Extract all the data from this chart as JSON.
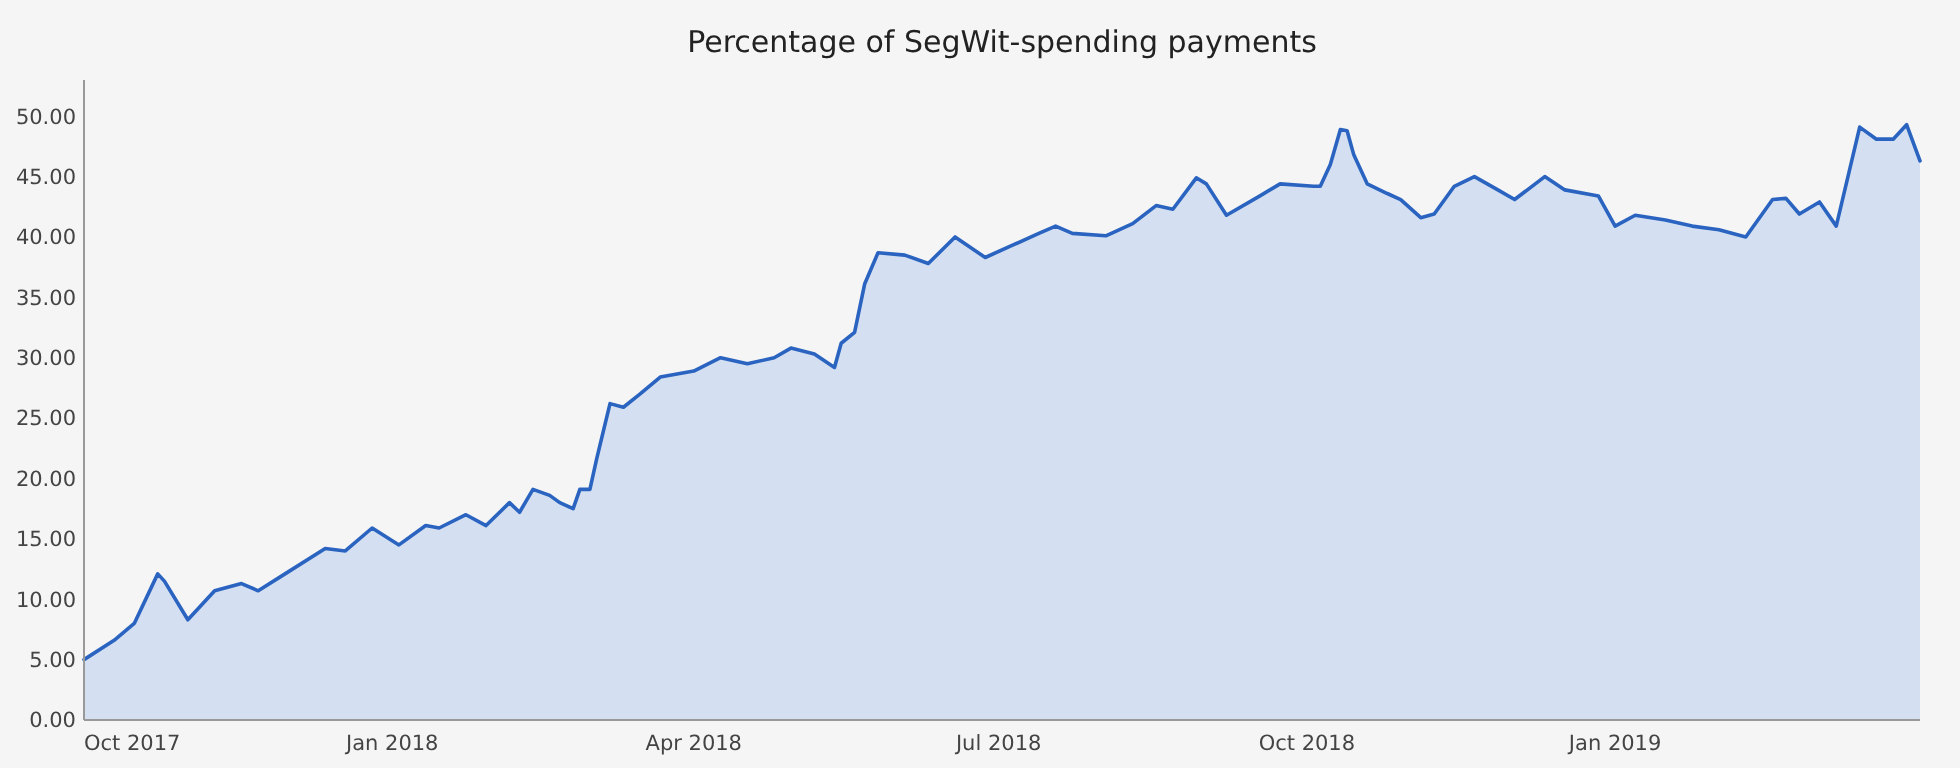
{
  "chart_data": {
    "type": "area",
    "title": "Percentage of SegWit-spending payments",
    "x": [
      "2017-10-01",
      "2017-10-10",
      "2017-10-16",
      "2017-10-23",
      "2017-10-25",
      "2017-11-01",
      "2017-11-09",
      "2017-11-17",
      "2017-11-22",
      "2017-11-30",
      "2017-12-12",
      "2017-12-18",
      "2017-12-26",
      "2018-01-03",
      "2018-01-11",
      "2018-01-15",
      "2018-01-23",
      "2018-01-29",
      "2018-02-05",
      "2018-02-08",
      "2018-02-12",
      "2018-02-17",
      "2018-02-20",
      "2018-02-24",
      "2018-02-26",
      "2018-03-01",
      "2018-03-03",
      "2018-03-07",
      "2018-03-11",
      "2018-03-16",
      "2018-03-22",
      "2018-04-01",
      "2018-04-09",
      "2018-04-17",
      "2018-04-25",
      "2018-04-30",
      "2018-05-07",
      "2018-05-13",
      "2018-05-15",
      "2018-05-19",
      "2018-05-22",
      "2018-05-26",
      "2018-06-03",
      "2018-06-10",
      "2018-06-18",
      "2018-06-27",
      "2018-07-05",
      "2018-07-13",
      "2018-07-18",
      "2018-07-23",
      "2018-08-02",
      "2018-08-10",
      "2018-08-17",
      "2018-08-22",
      "2018-08-29",
      "2018-09-01",
      "2018-09-07",
      "2018-09-17",
      "2018-09-23",
      "2018-10-03",
      "2018-10-05",
      "2018-10-08",
      "2018-10-11",
      "2018-10-13",
      "2018-10-15",
      "2018-10-19",
      "2018-10-25",
      "2018-10-29",
      "2018-11-04",
      "2018-11-08",
      "2018-11-14",
      "2018-11-20",
      "2018-11-27",
      "2018-12-02",
      "2018-12-11",
      "2018-12-17",
      "2018-12-27",
      "2019-01-01",
      "2019-01-07",
      "2019-01-16",
      "2019-01-24",
      "2019-02-01",
      "2019-02-09",
      "2019-02-17",
      "2019-02-21",
      "2019-02-25",
      "2019-03-03",
      "2019-03-08",
      "2019-03-15",
      "2019-03-20",
      "2019-03-25",
      "2019-03-29",
      "2019-04-02"
    ],
    "series": [
      {
        "color": "#2a64c0",
        "values": [
          5.0,
          6.6,
          8.0,
          12.1,
          11.5,
          8.3,
          10.7,
          11.3,
          10.7,
          12.1,
          14.2,
          14.0,
          15.9,
          14.5,
          16.1,
          15.9,
          17.0,
          16.1,
          18.0,
          17.2,
          19.1,
          18.6,
          18.0,
          17.5,
          19.1,
          19.1,
          21.6,
          26.2,
          25.9,
          27.0,
          28.4,
          28.9,
          30.0,
          29.5,
          30.0,
          30.8,
          30.3,
          29.2,
          31.2,
          32.1,
          36.1,
          38.7,
          38.5,
          37.8,
          40.0,
          38.3,
          39.3,
          40.3,
          40.9,
          40.3,
          40.1,
          41.1,
          42.6,
          42.3,
          44.9,
          44.4,
          41.8,
          43.4,
          44.4,
          44.2,
          44.2,
          46.0,
          48.9,
          48.8,
          46.8,
          44.4,
          43.6,
          43.1,
          41.6,
          41.9,
          44.2,
          45.0,
          43.9,
          43.1,
          45.0,
          43.9,
          43.4,
          40.9,
          41.8,
          41.4,
          40.9,
          40.6,
          40.0,
          43.1,
          43.2,
          41.9,
          42.9,
          40.9,
          49.1,
          48.1,
          48.1,
          49.3,
          46.3
        ]
      }
    ],
    "xlim": [
      "2017-10-01",
      "2019-04-02"
    ],
    "xticks": [
      {
        "value": "2017-10-01",
        "label": "Oct 2017"
      },
      {
        "value": "2018-01-01",
        "label": "Jan 2018"
      },
      {
        "value": "2018-04-01",
        "label": "Apr 2018"
      },
      {
        "value": "2018-07-01",
        "label": "Jul 2018"
      },
      {
        "value": "2018-10-01",
        "label": "Oct 2018"
      },
      {
        "value": "2019-01-01",
        "label": "Jan 2019"
      }
    ],
    "ylim": [
      0,
      53
    ],
    "yticks": [
      {
        "value": 0,
        "label": "0.00"
      },
      {
        "value": 5,
        "label": "5.00"
      },
      {
        "value": 10,
        "label": "10.00"
      },
      {
        "value": 15,
        "label": "15.00"
      },
      {
        "value": 20,
        "label": "20.00"
      },
      {
        "value": 25,
        "label": "25.00"
      },
      {
        "value": 30,
        "label": "30.00"
      },
      {
        "value": 35,
        "label": "35.00"
      },
      {
        "value": 40,
        "label": "40.00"
      },
      {
        "value": 45,
        "label": "45.00"
      },
      {
        "value": 50,
        "label": "50.00"
      }
    ],
    "grid": false
  }
}
